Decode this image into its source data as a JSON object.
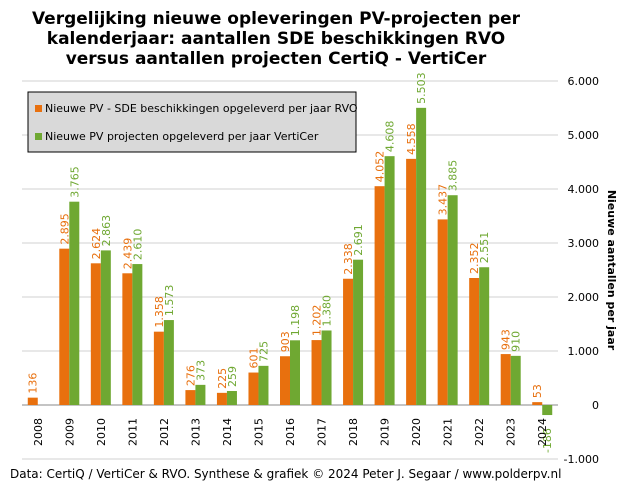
{
  "chart_data": {
    "type": "bar",
    "title_lines": [
      "Vergelijking  nieuwe opleveringen PV-projecten per",
      "kalenderjaar: aantallen SDE beschikkingen RVO",
      "versus aantallen projecten CertiQ - VertiCer"
    ],
    "categories": [
      "2008",
      "2009",
      "2010",
      "2011",
      "2012",
      "2013",
      "2014",
      "2015",
      "2016",
      "2017",
      "2018",
      "2019",
      "2020",
      "2021",
      "2022",
      "2023",
      "2024"
    ],
    "series": [
      {
        "name": "Nieuwe PV - SDE beschikkingen opgeleverd per jaar RVO",
        "color": "#e8700e",
        "values": [
          136,
          2895,
          2624,
          2439,
          1358,
          276,
          225,
          601,
          903,
          1202,
          2338,
          4052,
          4558,
          3437,
          2352,
          943,
          53
        ],
        "labels": [
          "136",
          "2.895",
          "2.624",
          "2.439",
          "1.358",
          "276",
          "225",
          "601",
          "903",
          "1.202",
          "2.338",
          "4.052",
          "4.558",
          "3.437",
          "2.352",
          "943",
          "53"
        ]
      },
      {
        "name": "Nieuwe PV projecten opgeleverd per jaar VertiCer",
        "color": "#6fa832",
        "values": [
          null,
          3765,
          2863,
          2610,
          1573,
          373,
          259,
          725,
          1198,
          1380,
          2691,
          4608,
          5503,
          3885,
          2551,
          910,
          -186
        ],
        "labels": [
          "",
          "3.765",
          "2.863",
          "2.610",
          "1.573",
          "373",
          "259",
          "725",
          "1.198",
          "1.380",
          "2.691",
          "4.608",
          "5.503",
          "3.885",
          "2.551",
          "910",
          "-186"
        ]
      }
    ],
    "ylabel": "Nieuwe aantallen per jaar",
    "ylim": [
      -1000,
      6000
    ],
    "yticks": [
      -1000,
      0,
      1000,
      2000,
      3000,
      4000,
      5000,
      6000
    ],
    "ytick_labels": [
      "-1.000",
      "0",
      "1.000",
      "2.000",
      "3.000",
      "4.000",
      "5.000",
      "6.000"
    ],
    "y_axis_side": "right",
    "grid": true,
    "legend_position": "top-left",
    "source": "Data: CertiQ / VertiCer & RVO. Synthese & grafiek © 2024 Peter J. Segaar / www.polderpv.nl"
  }
}
